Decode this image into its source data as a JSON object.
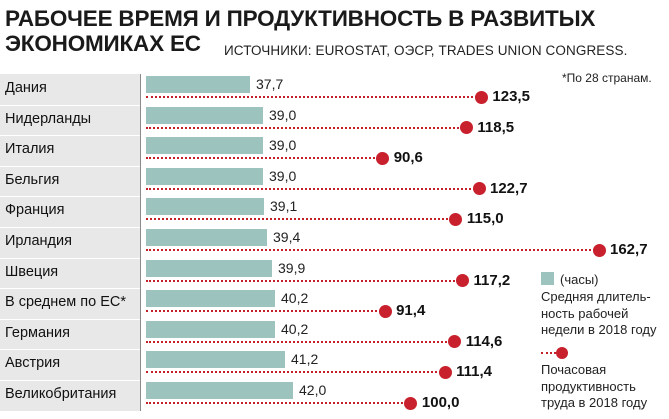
{
  "title_lines": [
    "РАБОЧЕЕ ВРЕМЯ И ПРОДУКТИВНОСТЬ В РАЗВИТЫХ",
    "ЭКОНОМИКАХ ЕС"
  ],
  "source": "ИСТОЧНИКИ: EUROSTAT, ОЭСР, TRADES UNION CONGRESS.",
  "footnote": "*По 28 странам.",
  "legend": {
    "hours_unit": "(часы)",
    "hours_desc": [
      "Средняя длитель-",
      "ность рабочей",
      "недели в 2018 году"
    ],
    "productivity_desc": [
      "Почасовая",
      "продуктивность",
      "труда в 2018 году"
    ]
  },
  "colors": {
    "hours_bar": "#9cc3bd",
    "productivity_marker": "#c8202c",
    "label_column": "#e8e8e8"
  },
  "chart_data": {
    "type": "bar",
    "orientation": "horizontal",
    "categories": [
      "Дания",
      "Нидерланды",
      "Италия",
      "Бельгия",
      "Франция",
      "Ирландия",
      "Швеция",
      "В среднем по ЕС*",
      "Германия",
      "Австрия",
      "Великобритания"
    ],
    "series": [
      {
        "values": [
          37.7,
          39.0,
          39.0,
          39.0,
          39.1,
          39.4,
          39.9,
          40.2,
          40.2,
          41.2,
          42.0
        ],
        "labels": [
          "37,7",
          "39,0",
          "39,0",
          "39,0",
          "39,1",
          "39,4",
          "39,9",
          "40,2",
          "40,2",
          "41,2",
          "42,0"
        ]
      },
      {
        "values": [
          123.5,
          118.5,
          90.6,
          122.7,
          115.0,
          162.7,
          117.2,
          91.4,
          114.6,
          111.4,
          100.0
        ],
        "labels": [
          "123,5",
          "118,5",
          "90,6",
          "122,7",
          "115,0",
          "162,7",
          "117,2",
          "91,4",
          "114,6",
          "111,4",
          "100,0"
        ]
      }
    ],
    "legend_position": "bottom-right",
    "grid": false
  }
}
